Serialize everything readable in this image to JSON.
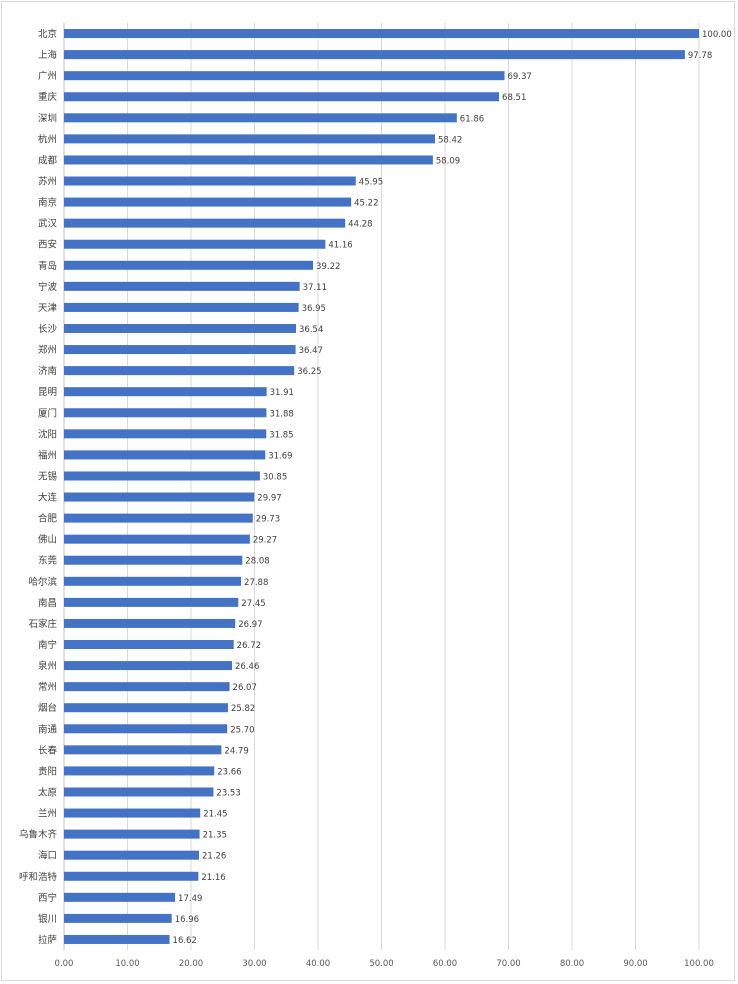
{
  "chart_data": {
    "type": "bar",
    "orientation": "horizontal",
    "categories": [
      "北京",
      "上海",
      "广州",
      "重庆",
      "深圳",
      "杭州",
      "成都",
      "苏州",
      "南京",
      "武汉",
      "西安",
      "青岛",
      "宁波",
      "天津",
      "长沙",
      "郑州",
      "济南",
      "昆明",
      "厦门",
      "沈阳",
      "福州",
      "无锡",
      "大连",
      "合肥",
      "佛山",
      "东莞",
      "哈尔滨",
      "南昌",
      "石家庄",
      "南宁",
      "泉州",
      "常州",
      "烟台",
      "南通",
      "长春",
      "贵阳",
      "太原",
      "兰州",
      "乌鲁木齐",
      "海口",
      "呼和浩特",
      "西宁",
      "银川",
      "拉萨"
    ],
    "values": [
      100.0,
      97.78,
      69.37,
      68.51,
      61.86,
      58.42,
      58.09,
      45.95,
      45.22,
      44.28,
      41.16,
      39.22,
      37.11,
      36.95,
      36.54,
      36.47,
      36.25,
      31.91,
      31.88,
      31.85,
      31.69,
      30.85,
      29.97,
      29.73,
      29.27,
      28.08,
      27.88,
      27.45,
      26.97,
      26.72,
      26.46,
      26.07,
      25.82,
      25.7,
      24.79,
      23.66,
      23.53,
      21.45,
      21.35,
      21.26,
      21.16,
      17.49,
      16.96,
      16.62
    ],
    "value_labels": [
      "100.00",
      "97.78",
      "69.37",
      "68.51",
      "61.86",
      "58.42",
      "58.09",
      "45.95",
      "45.22",
      "44.28",
      "41.16",
      "39.22",
      "37.11",
      "36.95",
      "36.54",
      "36.47",
      "36.25",
      "31.91",
      "31.88",
      "31.85",
      "31.69",
      "30.85",
      "29.97",
      "29.73",
      "29.27",
      "28.08",
      "27.88",
      "27.45",
      "26.97",
      "26.72",
      "26.46",
      "26.07",
      "25.82",
      "25.70",
      "24.79",
      "23.66",
      "23.53",
      "21.45",
      "21.35",
      "21.26",
      "21.16",
      "17.49",
      "16.96",
      "16.62"
    ],
    "x_ticks": [
      "0.00",
      "10.00",
      "20.00",
      "30.00",
      "40.00",
      "50.00",
      "60.00",
      "70.00",
      "80.00",
      "90.00",
      "100.00"
    ],
    "xlim": [
      0,
      100
    ],
    "grid": true,
    "bar_color": "#4472c4",
    "gridline_color": "#d9d9d9"
  }
}
